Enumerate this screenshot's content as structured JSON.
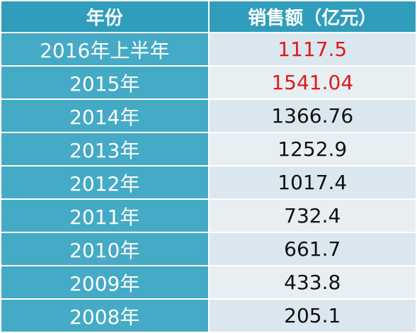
{
  "table": {
    "header": [
      "年份",
      "销售额（亿元）"
    ],
    "rows": [
      [
        "2016年上半年",
        "1117.5"
      ],
      [
        "2015年",
        "1541.04"
      ],
      [
        "2014年",
        "1366.76"
      ],
      [
        "2013年",
        "1252.9"
      ],
      [
        "2012年",
        "1017.4"
      ],
      [
        "2011年",
        "732.4"
      ],
      [
        "2010年",
        "661.7"
      ],
      [
        "2009年",
        "433.8"
      ],
      [
        "2008年",
        "205.1"
      ]
    ]
  }
}
